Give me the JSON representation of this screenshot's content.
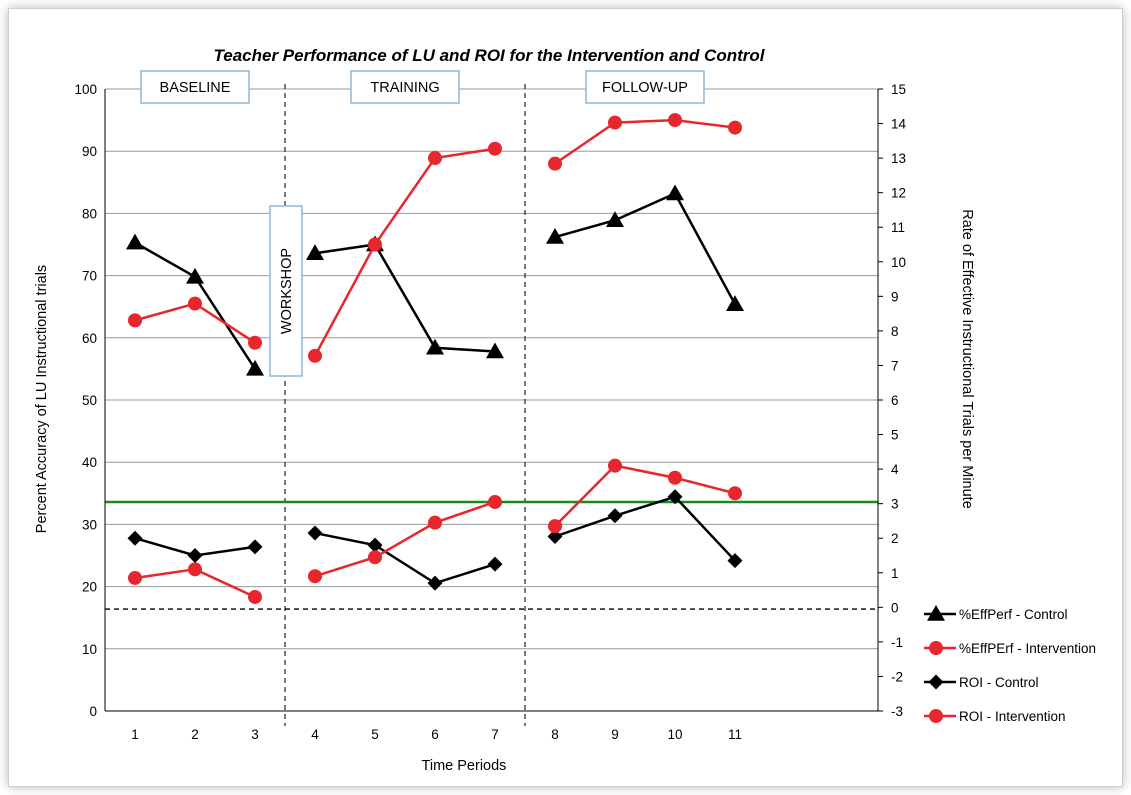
{
  "chart_data": {
    "type": "line",
    "title": "Teacher Performance of LU and ROI for the Intervention and Control",
    "xlabel": "Time Periods",
    "ylabel": "Percent Accuracy of LU Instructional trials",
    "y2label": "Rate of Effective Instructional Trials per Minute",
    "x_ticks": [
      "1",
      "2",
      "3",
      "4",
      "5",
      "6",
      "7",
      "8",
      "9",
      "10",
      "11"
    ],
    "ylim": [
      0,
      100
    ],
    "y_ticks": [
      "0",
      "10",
      "20",
      "30",
      "40",
      "50",
      "60",
      "70",
      "80",
      "90",
      "100"
    ],
    "y2lim": [
      -3,
      15
    ],
    "y2_ticks": [
      "-3",
      "-2",
      "-1",
      "0",
      "1",
      "2",
      "3",
      "4",
      "5",
      "6",
      "7",
      "8",
      "9",
      "10",
      "11",
      "12",
      "13",
      "14",
      "15"
    ],
    "grid": true,
    "legend_position": "bottom-right",
    "phases": [
      {
        "label": "BASELINE",
        "x_start": 1,
        "x_end": 3
      },
      {
        "label": "WORKSHOP",
        "x_start": 3,
        "x_end": 4
      },
      {
        "label": "TRAINING",
        "x_start": 4,
        "x_end": 7
      },
      {
        "label": "FOLLOW-UP",
        "x_start": 8,
        "x_end": 11
      }
    ],
    "phase_dividers_x": [
      3.5,
      7.5
    ],
    "reference_lines": [
      {
        "axis": "y2",
        "value": 3.05,
        "style": "solid",
        "color": "#1a8c1a"
      },
      {
        "axis": "y2",
        "value": -0.05,
        "style": "dashed",
        "color": "#000000"
      }
    ],
    "series": [
      {
        "name": "%EffPerf - Control",
        "axis": "y",
        "color": "#000000",
        "marker": "triangle",
        "segments": [
          [
            [
              1,
              75.3
            ],
            [
              2,
              69.8
            ],
            [
              3,
              55.0
            ]
          ],
          [
            [
              4,
              73.6
            ],
            [
              5,
              75.0
            ],
            [
              6,
              58.4
            ],
            [
              7,
              57.8
            ]
          ],
          [
            [
              8,
              76.2
            ],
            [
              9,
              78.9
            ],
            [
              10,
              83.2
            ],
            [
              11,
              65.4
            ]
          ]
        ]
      },
      {
        "name": "%EffPErf - Intervention",
        "axis": "y",
        "color": "#e8262d",
        "marker": "circle",
        "segments": [
          [
            [
              1,
              62.8
            ],
            [
              2,
              65.5
            ],
            [
              3,
              59.2
            ]
          ],
          [
            [
              4,
              57.1
            ],
            [
              5,
              75.0
            ],
            [
              6,
              88.9
            ],
            [
              7,
              90.4
            ]
          ],
          [
            [
              8,
              88.0
            ],
            [
              9,
              94.6
            ],
            [
              10,
              95.0
            ],
            [
              11,
              93.8
            ]
          ]
        ]
      },
      {
        "name": "ROI - Control",
        "axis": "y2",
        "color": "#000000",
        "marker": "diamond",
        "segments": [
          [
            [
              1,
              2.0
            ],
            [
              2,
              1.5
            ],
            [
              3,
              1.75
            ]
          ],
          [
            [
              4,
              2.15
            ],
            [
              5,
              1.8
            ],
            [
              6,
              0.7
            ],
            [
              7,
              1.25
            ]
          ],
          [
            [
              8,
              2.05
            ],
            [
              9,
              2.65
            ],
            [
              10,
              3.2
            ],
            [
              11,
              1.35
            ]
          ]
        ]
      },
      {
        "name": "ROI - Intervention",
        "axis": "y2",
        "color": "#e8262d",
        "marker": "circle",
        "segments": [
          [
            [
              1,
              0.85
            ],
            [
              2,
              1.1
            ],
            [
              3,
              0.3
            ]
          ],
          [
            [
              4,
              0.9
            ],
            [
              5,
              1.45
            ],
            [
              6,
              2.45
            ],
            [
              7,
              3.05
            ]
          ],
          [
            [
              8,
              2.35
            ],
            [
              9,
              4.1
            ],
            [
              10,
              3.75
            ],
            [
              11,
              3.3
            ]
          ]
        ]
      }
    ]
  }
}
